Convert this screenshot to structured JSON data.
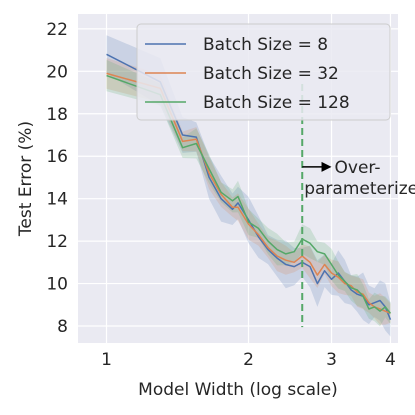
{
  "chart_data": {
    "type": "line",
    "title": "",
    "xlabel": "Model Width (log scale)",
    "ylabel": "Test Error (%)",
    "xlim": [
      0.87,
      4.15
    ],
    "ylim": [
      7.2,
      22.7
    ],
    "xticks": [
      1,
      2,
      3,
      4
    ],
    "yticks": [
      8,
      10,
      12,
      14,
      16,
      18,
      20,
      22
    ],
    "x_tick_labels": [
      "1",
      "2",
      "3",
      "4"
    ],
    "y_tick_labels": [
      "8",
      "10",
      "12",
      "14",
      "16",
      "18",
      "20",
      "22"
    ],
    "x_scale_note": "log",
    "grid": true,
    "legend_position": "top-right",
    "x": [
      1.0,
      1.3,
      1.45,
      1.55,
      1.65,
      1.75,
      1.85,
      1.9,
      2.0,
      2.1,
      2.2,
      2.3,
      2.4,
      2.5,
      2.6,
      2.7,
      2.8,
      2.9,
      3.0,
      3.1,
      3.2,
      3.3,
      3.4,
      3.5,
      3.6,
      3.7,
      3.8,
      3.9,
      4.0
    ],
    "series": [
      {
        "name": "Batch Size = 8",
        "color": "#4c72b0",
        "values": [
          20.8,
          19.5,
          17.0,
          16.9,
          15.0,
          14.0,
          13.5,
          13.8,
          13.0,
          12.2,
          11.6,
          11.2,
          10.9,
          10.8,
          11.0,
          10.8,
          10.0,
          10.6,
          10.2,
          10.5,
          10.1,
          9.7,
          9.5,
          9.4,
          9.0,
          9.1,
          9.2,
          8.9,
          8.3
        ],
        "band": 0.9
      },
      {
        "name": "Batch Size = 32",
        "color": "#dd8452",
        "values": [
          19.9,
          19.2,
          16.7,
          16.8,
          15.2,
          14.2,
          13.6,
          13.6,
          12.8,
          12.3,
          11.7,
          11.3,
          11.1,
          11.0,
          11.3,
          11.0,
          10.4,
          10.9,
          10.5,
          10.3,
          10.0,
          9.9,
          9.6,
          9.5,
          9.1,
          8.9,
          8.8,
          8.7,
          8.6
        ],
        "band": 0.6
      },
      {
        "name": "Batch Size = 128",
        "color": "#55a868",
        "values": [
          19.8,
          18.9,
          16.4,
          16.6,
          15.4,
          14.3,
          13.9,
          14.1,
          12.9,
          12.6,
          12.0,
          11.6,
          11.4,
          11.5,
          12.1,
          11.9,
          11.5,
          11.4,
          10.9,
          10.4,
          10.1,
          9.8,
          9.7,
          9.4,
          8.8,
          8.9,
          8.7,
          8.9,
          8.6
        ],
        "band": 0.6
      }
    ],
    "annotation": {
      "line_x": 2.6,
      "line_y_range": [
        7.95,
        19.4
      ],
      "line_color": "#55a868",
      "text_line1": "Over-",
      "text_line2": "parameterized",
      "arrow_from_x": 2.6,
      "arrow_to_x": 3.0,
      "arrow_y": 15.5
    }
  }
}
